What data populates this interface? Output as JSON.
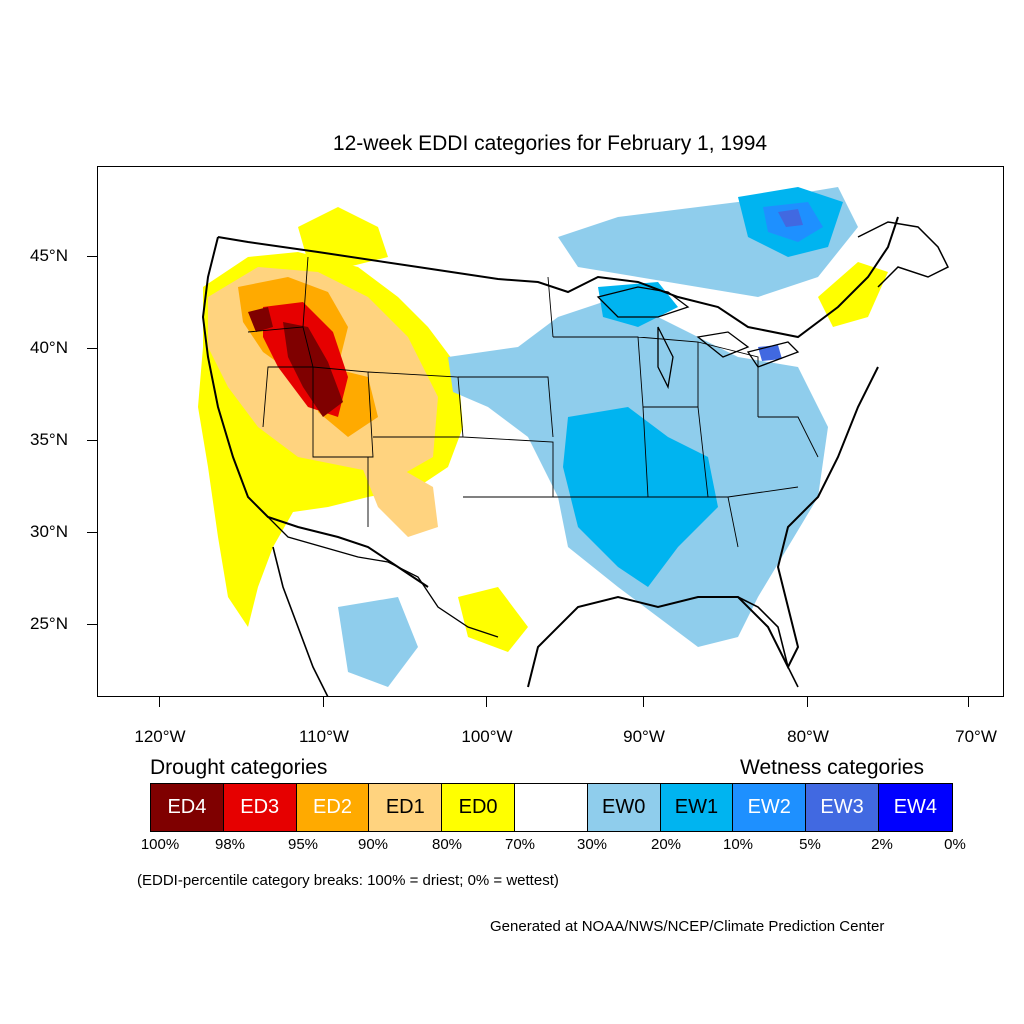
{
  "title": "12-week EDDI categories for February 1, 1994",
  "map": {
    "lat_labels": [
      "45°N",
      "40°N",
      "35°N",
      "30°N",
      "25°N"
    ],
    "lon_labels": [
      "120°W",
      "110°W",
      "100°W",
      "90°W",
      "80°W",
      "70°W"
    ],
    "colors": {
      "ED4": "#7f0000",
      "ED3": "#e60000",
      "ED2": "#ffaa00",
      "ED1": "#ffd37f",
      "ED0": "#ffff00",
      "neutral": "#ffffff",
      "EW0": "#8fcdec",
      "EW1": "#00b4f0",
      "EW2": "#1e90ff",
      "EW3": "#4169e1",
      "EW4": "#0000ff"
    }
  },
  "legend": {
    "drought_title": "Drought categories",
    "wetness_title": "Wetness categories",
    "boxes": [
      {
        "label": "ED4",
        "color": "#7f0000",
        "text_color": "#ffffff"
      },
      {
        "label": "ED3",
        "color": "#e60000",
        "text_color": "#ffffff"
      },
      {
        "label": "ED2",
        "color": "#ffaa00",
        "text_color": "#ffffff"
      },
      {
        "label": "ED1",
        "color": "#ffd37f",
        "text_color": "#000000"
      },
      {
        "label": "ED0",
        "color": "#ffff00",
        "text_color": "#000000"
      },
      {
        "label": "",
        "color": "#ffffff",
        "text_color": "#000000"
      },
      {
        "label": "EW0",
        "color": "#8fcdec",
        "text_color": "#000000"
      },
      {
        "label": "EW1",
        "color": "#00b4f0",
        "text_color": "#000000"
      },
      {
        "label": "EW2",
        "color": "#1e90ff",
        "text_color": "#ffffff"
      },
      {
        "label": "EW3",
        "color": "#4169e1",
        "text_color": "#ffffff"
      },
      {
        "label": "EW4",
        "color": "#0000ff",
        "text_color": "#ffffff"
      }
    ],
    "breaks": [
      "100%",
      "98%",
      "95%",
      "90%",
      "80%",
      "70%",
      "30%",
      "20%",
      "10%",
      "5%",
      "2%",
      "0%"
    ]
  },
  "note": "(EDDI-percentile category breaks: 100% = driest; 0% = wettest)",
  "credit": "Generated at NOAA/NWS/NCEP/Climate Prediction Center"
}
